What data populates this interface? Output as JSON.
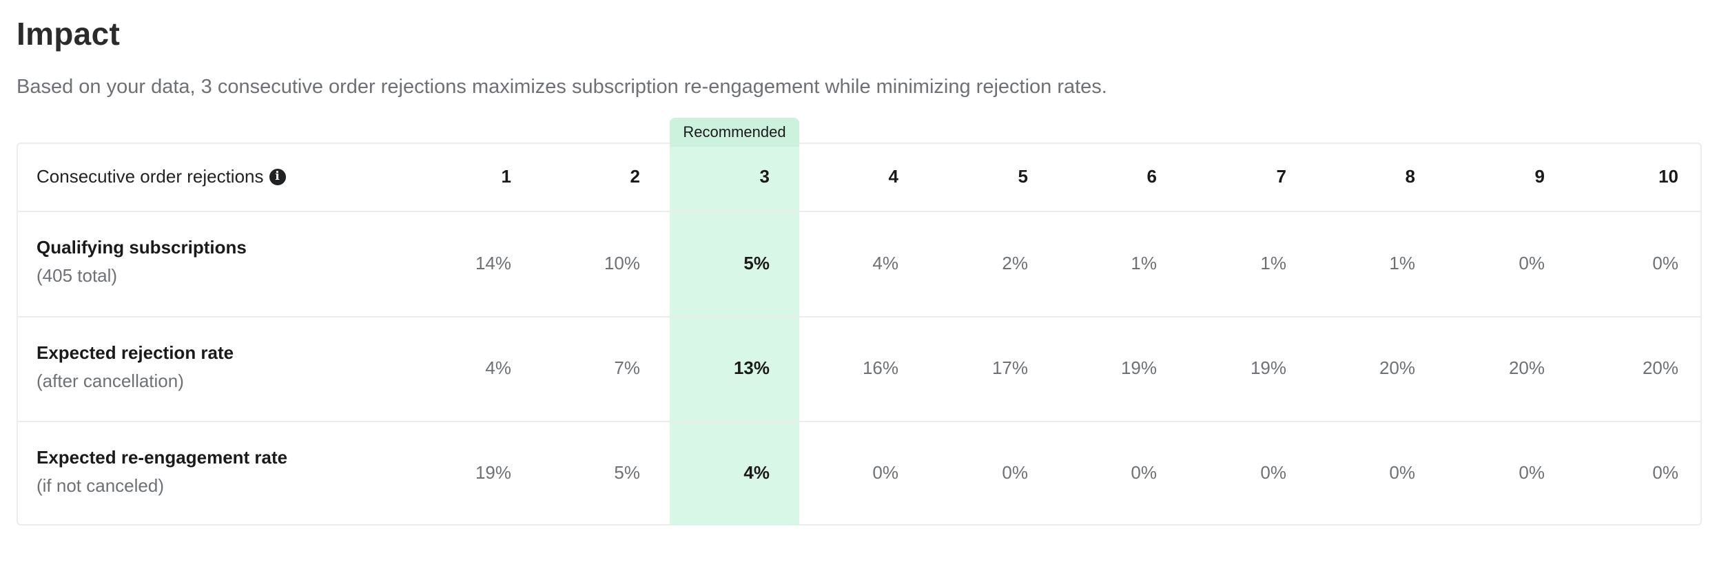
{
  "title": "Impact",
  "subtitle": "Based on your data, 3 consecutive order rejections maximizes subscription re-engagement while minimizing rejection rates.",
  "badge": "Recommended",
  "table": {
    "header_label": "Consecutive order rejections",
    "columns": [
      "1",
      "2",
      "3",
      "4",
      "5",
      "6",
      "7",
      "8",
      "9",
      "10"
    ],
    "recommended_column": "3",
    "rows": [
      {
        "label": "Qualifying subscriptions",
        "sublabel": "(405 total)",
        "values": [
          "14%",
          "10%",
          "5%",
          "4%",
          "2%",
          "1%",
          "1%",
          "1%",
          "0%",
          "0%"
        ]
      },
      {
        "label": "Expected rejection rate",
        "sublabel": "(after cancellation)",
        "values": [
          "4%",
          "7%",
          "13%",
          "16%",
          "17%",
          "19%",
          "19%",
          "20%",
          "20%",
          "20%"
        ]
      },
      {
        "label": "Expected re-engagement rate",
        "sublabel": "(if not canceled)",
        "values": [
          "19%",
          "5%",
          "4%",
          "0%",
          "0%",
          "0%",
          "0%",
          "0%",
          "0%",
          "0%"
        ]
      }
    ]
  },
  "icons": {
    "info": "info-icon"
  },
  "colors": {
    "highlight": "#d9f7e6",
    "badge": "#ccf2dd"
  }
}
